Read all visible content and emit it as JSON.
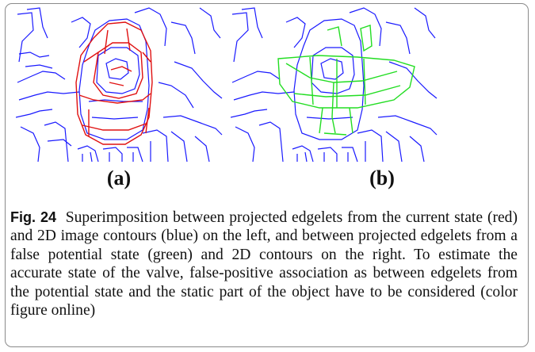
{
  "figure": {
    "panels": [
      {
        "id": "a",
        "label": "(a)",
        "overlay_color": "#e01010",
        "contour_color": "#1a1aff"
      },
      {
        "id": "b",
        "label": "(b)",
        "overlay_color": "#22dd22",
        "contour_color": "#1a1aff"
      }
    ],
    "caption": {
      "fig_label": "Fig. 24",
      "text": "Superimposition between projected edgelets from the current state (red) and 2D image contours (blue) on the left, and between projected edgelets from a false potential state (green) and 2D contours on the right. To estimate the accurate state of the valve, false-positive association as between edgelets from the potential state and the static part of the object have to be considered (color figure online)"
    }
  }
}
